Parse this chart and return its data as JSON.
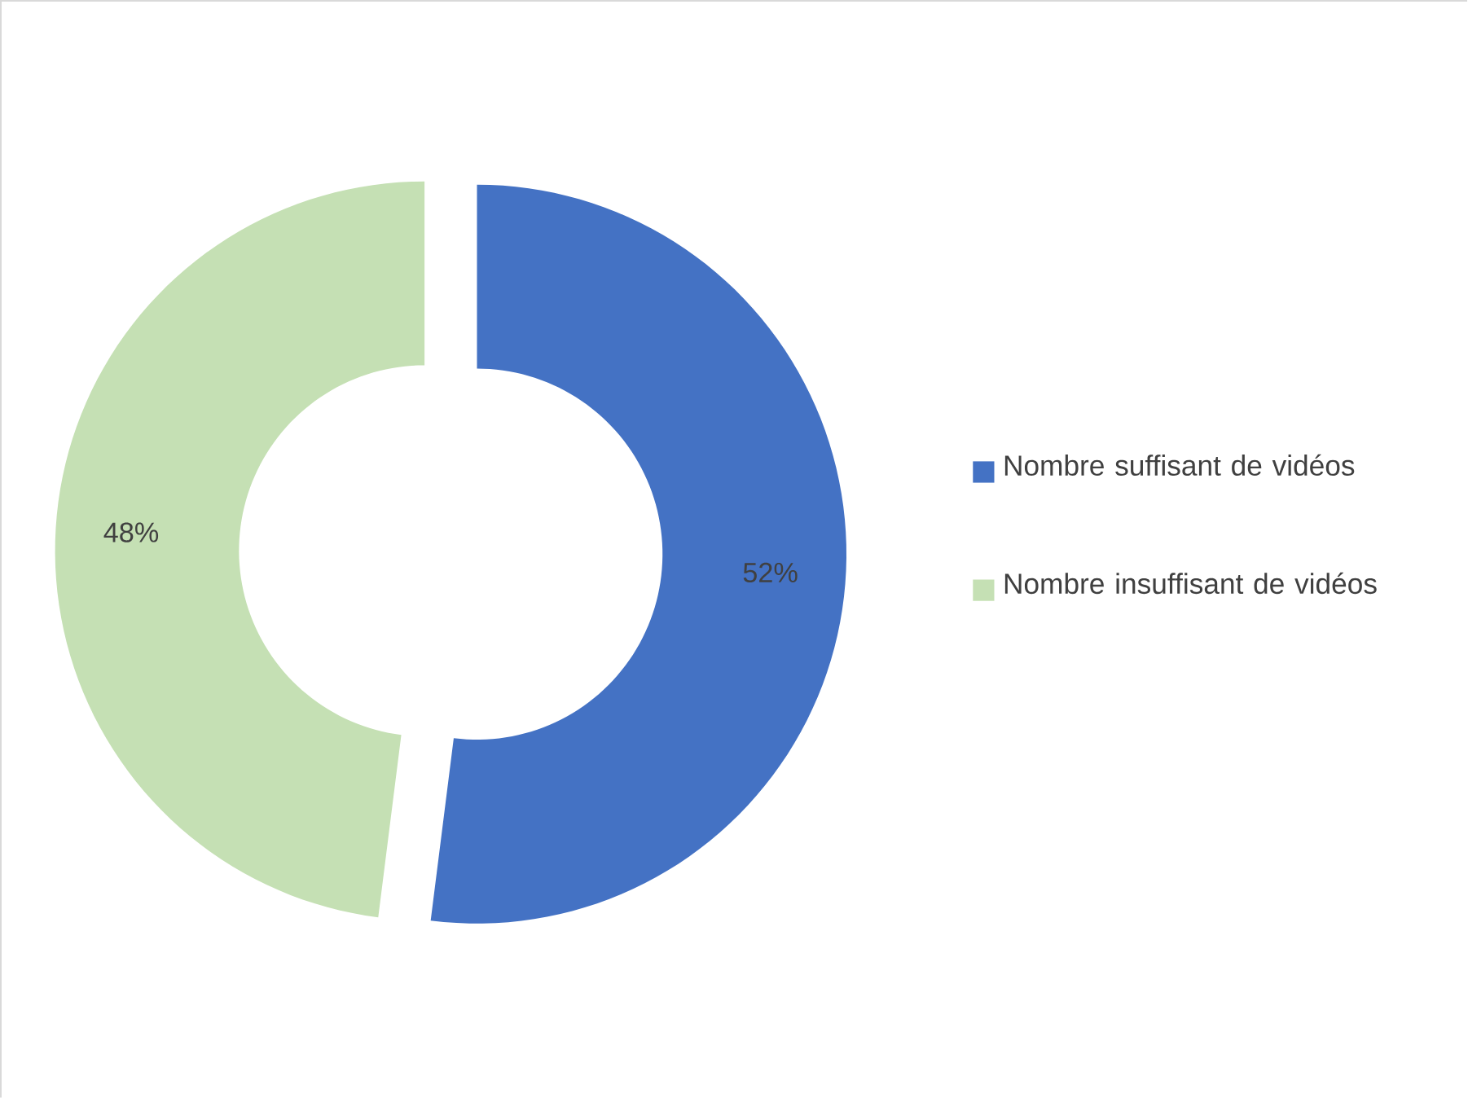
{
  "chart_data": {
    "type": "donut",
    "categories": [
      "Nombre suffisant de vidéos",
      "Nombre insuffisant de vidéos"
    ],
    "values": [
      52,
      48
    ],
    "colors": [
      "#4472c4",
      "#c5e0b4"
    ],
    "value_labels": [
      "52%",
      "48%"
    ],
    "legend": "right"
  }
}
